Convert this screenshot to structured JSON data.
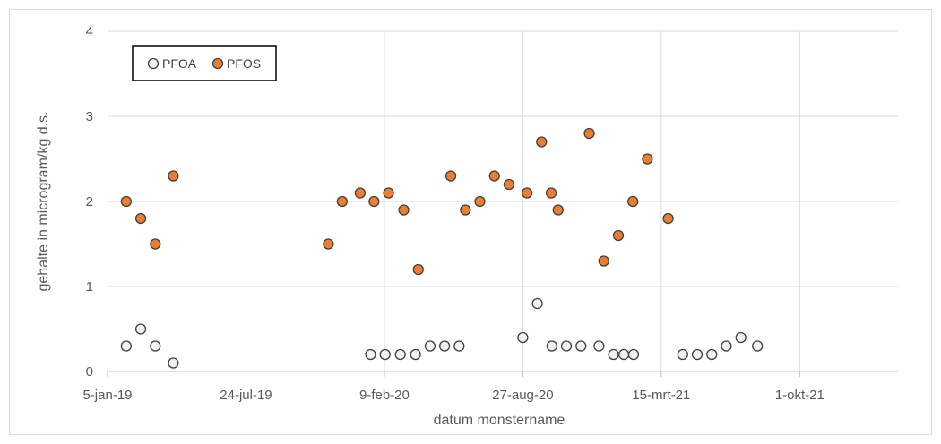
{
  "chart_data": {
    "type": "scatter",
    "xlabel": "datum monstername",
    "ylabel": "gehalte in microgram/kg d.s.",
    "xlim": [
      "2019-01-05",
      "2022-02-20"
    ],
    "ylim": [
      0,
      4
    ],
    "yticks": [
      0,
      1,
      2,
      3,
      4
    ],
    "xticks": [
      {
        "date": "2019-01-05",
        "label": "5-jan-19"
      },
      {
        "date": "2019-07-24",
        "label": "24-jul-19"
      },
      {
        "date": "2020-02-09",
        "label": "9-feb-20"
      },
      {
        "date": "2020-08-27",
        "label": "27-aug-20"
      },
      {
        "date": "2021-03-15",
        "label": "15-mrt-21"
      },
      {
        "date": "2021-10-01",
        "label": "1-okt-21"
      }
    ],
    "grid": true,
    "legend": "top-left",
    "series": [
      {
        "name": "PFOA",
        "color": "#f2f2f2",
        "stroke": "#404040",
        "points": [
          {
            "x": "2019-02-01",
            "y": 0.3
          },
          {
            "x": "2019-02-22",
            "y": 0.5
          },
          {
            "x": "2019-03-15",
            "y": 0.3
          },
          {
            "x": "2019-04-10",
            "y": 0.1
          },
          {
            "x": "2020-01-20",
            "y": 0.2
          },
          {
            "x": "2020-02-10",
            "y": 0.2
          },
          {
            "x": "2020-03-03",
            "y": 0.2
          },
          {
            "x": "2020-03-25",
            "y": 0.2
          },
          {
            "x": "2020-04-15",
            "y": 0.3
          },
          {
            "x": "2020-05-06",
            "y": 0.3
          },
          {
            "x": "2020-05-27",
            "y": 0.3
          },
          {
            "x": "2020-08-27",
            "y": 0.4
          },
          {
            "x": "2020-09-17",
            "y": 0.8
          },
          {
            "x": "2020-10-08",
            "y": 0.3
          },
          {
            "x": "2020-10-29",
            "y": 0.3
          },
          {
            "x": "2020-11-19",
            "y": 0.3
          },
          {
            "x": "2020-12-15",
            "y": 0.3
          },
          {
            "x": "2021-01-05",
            "y": 0.2
          },
          {
            "x": "2021-01-20",
            "y": 0.2
          },
          {
            "x": "2021-02-03",
            "y": 0.2
          },
          {
            "x": "2021-04-15",
            "y": 0.2
          },
          {
            "x": "2021-05-06",
            "y": 0.2
          },
          {
            "x": "2021-05-27",
            "y": 0.2
          },
          {
            "x": "2021-06-17",
            "y": 0.3
          },
          {
            "x": "2021-07-08",
            "y": 0.4
          },
          {
            "x": "2021-08-01",
            "y": 0.3
          }
        ]
      },
      {
        "name": "PFOS",
        "color": "#ed7d31",
        "stroke": "#404040",
        "points": [
          {
            "x": "2019-02-01",
            "y": 2.0
          },
          {
            "x": "2019-02-22",
            "y": 1.8
          },
          {
            "x": "2019-03-15",
            "y": 1.5
          },
          {
            "x": "2019-04-10",
            "y": 2.3
          },
          {
            "x": "2019-11-20",
            "y": 1.5
          },
          {
            "x": "2019-12-10",
            "y": 2.0
          },
          {
            "x": "2020-01-05",
            "y": 2.1
          },
          {
            "x": "2020-01-25",
            "y": 2.0
          },
          {
            "x": "2020-02-15",
            "y": 2.1
          },
          {
            "x": "2020-03-08",
            "y": 1.9
          },
          {
            "x": "2020-03-29",
            "y": 1.2
          },
          {
            "x": "2020-05-15",
            "y": 2.3
          },
          {
            "x": "2020-06-05",
            "y": 1.9
          },
          {
            "x": "2020-06-26",
            "y": 2.0
          },
          {
            "x": "2020-07-17",
            "y": 2.3
          },
          {
            "x": "2020-08-07",
            "y": 2.2
          },
          {
            "x": "2020-09-02",
            "y": 2.1
          },
          {
            "x": "2020-09-23",
            "y": 2.7
          },
          {
            "x": "2020-10-07",
            "y": 2.1
          },
          {
            "x": "2020-10-17",
            "y": 1.9
          },
          {
            "x": "2020-12-01",
            "y": 2.8
          },
          {
            "x": "2020-12-22",
            "y": 1.3
          },
          {
            "x": "2021-01-12",
            "y": 1.6
          },
          {
            "x": "2021-02-02",
            "y": 2.0
          },
          {
            "x": "2021-02-23",
            "y": 2.5
          },
          {
            "x": "2021-03-25",
            "y": 1.8
          }
        ]
      }
    ]
  }
}
